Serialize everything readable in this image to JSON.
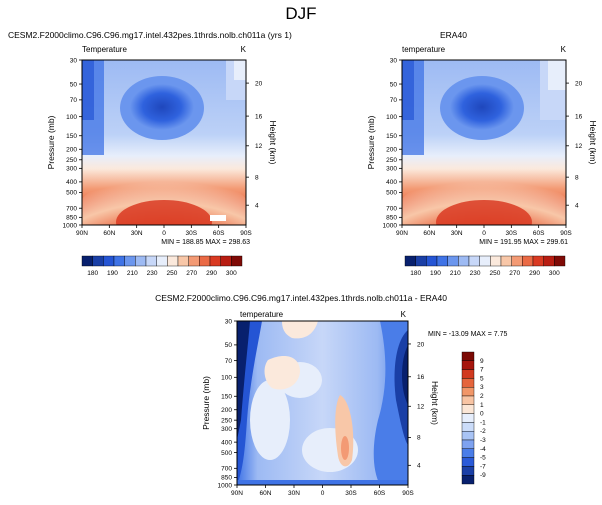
{
  "page": {
    "title": "DJF"
  },
  "colors": {
    "cold_scale": [
      "#08206e",
      "#1a3fa6",
      "#2555d4",
      "#3f73e6",
      "#6b96ee",
      "#9dbaf3",
      "#c7d7f8",
      "#e7eefb"
    ],
    "warm_scale": [
      "#fbe9dc",
      "#f8c7a8",
      "#f39a74",
      "#ea6a45",
      "#d93a22",
      "#b81d12",
      "#7f0a06"
    ],
    "diff_scale": [
      "#08206e",
      "#1a3fa6",
      "#2a5ad8",
      "#4a7de8",
      "#7ea2f0",
      "#a9c4f5",
      "#cbdcf9",
      "#e6eefc",
      "#fbe6d6",
      "#f8c4a3",
      "#f19668",
      "#e5653c",
      "#d1391f",
      "#a6150d",
      "#7b0904"
    ]
  },
  "chart_data": [
    {
      "id": "model",
      "type": "heatmap",
      "title": "CESM2.F2000climo.C96.C96.mg17.intel.432pes.1thrds.nolb.ch011a (yrs 1)",
      "left_label": "Temperature",
      "right_label": "K",
      "ylabel": "Pressure (mb)",
      "y2label": "Height (km)",
      "x_ticks": [
        "90N",
        "60N",
        "30N",
        "0",
        "30S",
        "60S",
        "90S"
      ],
      "y_ticks": [
        "30",
        "50",
        "70",
        "100",
        "150",
        "200",
        "250",
        "300",
        "400",
        "500",
        "700",
        "850",
        "1000"
      ],
      "y2_ticks": [
        "20",
        "16",
        "12",
        "8",
        "4"
      ],
      "stats": "MIN = 188.85  MAX = 298.63",
      "min": 188.85,
      "max": 298.63
    },
    {
      "id": "obs",
      "type": "heatmap",
      "title": "ERA40",
      "left_label": "temperature",
      "right_label": "K",
      "ylabel": "Pressure (mb)",
      "y2label": "Height (km)",
      "x_ticks": [
        "90N",
        "60N",
        "30N",
        "0",
        "30S",
        "60S",
        "90S"
      ],
      "y_ticks": [
        "30",
        "50",
        "70",
        "100",
        "150",
        "200",
        "250",
        "300",
        "400",
        "500",
        "700",
        "850",
        "1000"
      ],
      "y2_ticks": [
        "20",
        "16",
        "12",
        "8",
        "4"
      ],
      "stats": "MIN = 191.95  MAX = 299.61",
      "min": 191.95,
      "max": 299.61
    },
    {
      "id": "diff",
      "type": "heatmap",
      "title": "CESM2.F2000climo.C96.C96.mg17.intel.432pes.1thrds.nolb.ch011a - ERA40",
      "left_label": "temperature",
      "right_label": "K",
      "ylabel": "Pressure (mb)",
      "y2label": "Height (km)",
      "x_ticks": [
        "90N",
        "60N",
        "30N",
        "0",
        "30S",
        "60S",
        "90S"
      ],
      "y_ticks": [
        "30",
        "50",
        "70",
        "100",
        "150",
        "200",
        "250",
        "300",
        "400",
        "500",
        "700",
        "850",
        "1000"
      ],
      "y2_ticks": [
        "20",
        "16",
        "12",
        "8",
        "4"
      ],
      "stats": "MIN = -13.09  MAX =  7.75",
      "min": -13.09,
      "max": 7.75
    }
  ],
  "colorbars": {
    "absolute": [
      "180",
      "190",
      "200",
      "210",
      "220",
      "230",
      "240",
      "250",
      "260",
      "270",
      "280",
      "290",
      "300"
    ],
    "abs_shown": [
      "180",
      "190",
      "210",
      "230",
      "250",
      "270",
      "290",
      "300"
    ],
    "diff": [
      "9",
      "7",
      "5",
      "3",
      "2",
      "1",
      "0",
      "-1",
      "-2",
      "-3",
      "-4",
      "-5",
      "-7",
      "-9"
    ]
  }
}
